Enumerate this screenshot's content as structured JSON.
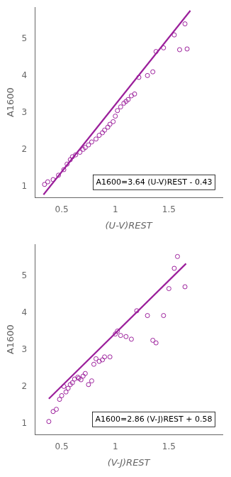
{
  "chart_data": [
    {
      "type": "scatter",
      "xlabel": "(U-V)REST",
      "ylabel": "A1600",
      "annotation": "A1600=3.64 (U-V)REST - 0.43",
      "xlim": [
        0.25,
        2.0
      ],
      "ylim": [
        0.7,
        5.85
      ],
      "xticks": [
        0.5,
        1,
        1.5
      ],
      "yticks": [
        1,
        2,
        3,
        4,
        5
      ],
      "grid": false,
      "series": [
        {
          "type": "scatter",
          "color": "#9B1F9B",
          "marker": "circle",
          "x": [
            0.34,
            0.37,
            0.42,
            0.47,
            0.52,
            0.55,
            0.58,
            0.6,
            0.63,
            0.67,
            0.7,
            0.72,
            0.75,
            0.78,
            0.82,
            0.85,
            0.88,
            0.9,
            0.93,
            0.95,
            0.98,
            1.0,
            1.02,
            1.05,
            1.08,
            1.1,
            1.12,
            1.15,
            1.18,
            1.22,
            1.3,
            1.35,
            1.38,
            1.45,
            1.55,
            1.6,
            1.65,
            1.67
          ],
          "values": [
            1.05,
            1.12,
            1.18,
            1.3,
            1.45,
            1.6,
            1.72,
            1.8,
            1.85,
            1.92,
            2.0,
            2.05,
            2.12,
            2.2,
            2.28,
            2.38,
            2.45,
            2.52,
            2.6,
            2.68,
            2.75,
            2.9,
            3.05,
            3.15,
            3.25,
            3.3,
            3.35,
            3.45,
            3.5,
            3.95,
            4.0,
            4.1,
            4.65,
            4.75,
            5.1,
            4.7,
            5.4,
            4.72
          ]
        },
        {
          "type": "line",
          "color": "#9B1F9B",
          "line_style": "solid",
          "x": [
            0.33,
            1.7
          ],
          "values": [
            0.7712,
            5.758
          ]
        }
      ]
    },
    {
      "type": "scatter",
      "xlabel": "(V-J)REST",
      "ylabel": "A1600",
      "annotation": "A1600=2.86 (V-J)REST + 0.58",
      "xlim": [
        0.25,
        2.0
      ],
      "ylim": [
        0.7,
        5.85
      ],
      "xticks": [
        0.5,
        1,
        1.5
      ],
      "yticks": [
        1,
        2,
        3,
        4,
        5
      ],
      "grid": false,
      "series": [
        {
          "type": "scatter",
          "color": "#9B1F9B",
          "marker": "circle",
          "x": [
            0.38,
            0.42,
            0.45,
            0.48,
            0.5,
            0.52,
            0.54,
            0.56,
            0.58,
            0.6,
            0.62,
            0.65,
            0.66,
            0.68,
            0.7,
            0.72,
            0.75,
            0.78,
            0.8,
            0.82,
            0.85,
            0.88,
            0.9,
            0.95,
            1.0,
            1.02,
            1.05,
            1.1,
            1.15,
            1.2,
            1.3,
            1.35,
            1.38,
            1.45,
            1.5,
            1.55,
            1.58,
            1.65
          ],
          "values": [
            1.05,
            1.32,
            1.38,
            1.65,
            1.75,
            2.0,
            1.85,
            1.95,
            2.05,
            2.1,
            2.2,
            2.25,
            2.22,
            2.18,
            2.28,
            2.35,
            2.05,
            2.15,
            2.6,
            2.75,
            2.68,
            2.72,
            2.8,
            2.8,
            3.42,
            3.5,
            3.38,
            3.35,
            3.28,
            4.05,
            3.92,
            3.25,
            3.18,
            3.92,
            4.65,
            5.2,
            5.52,
            4.7
          ]
        },
        {
          "type": "line",
          "color": "#9B1F9B",
          "line_style": "solid",
          "x": [
            0.38,
            1.66
          ],
          "values": [
            1.6668,
            5.3276
          ]
        }
      ]
    }
  ]
}
